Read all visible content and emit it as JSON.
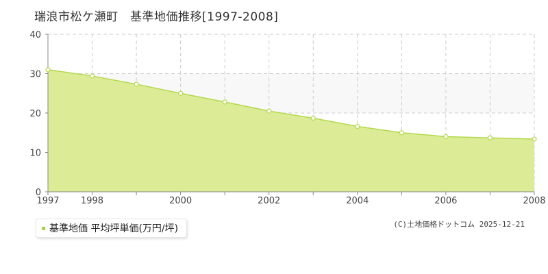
{
  "page": {
    "title": "瑞浪市松ケ瀬町　基準地価推移[1997-2008]",
    "legend_label": "基準地価 平均坪単価(万円/坪)",
    "credit": "(C)土地価格ドットコム 2025-12-21"
  },
  "colors": {
    "area_fill": "#dcec96",
    "line": "#b2d94a",
    "marker_stroke": "#b2d94a",
    "grid": "#cccccc",
    "band": "#f8f8f8"
  },
  "chart_data": {
    "type": "area",
    "title": "瑞浪市松ケ瀬町　基準地価推移[1997-2008]",
    "xlabel": "",
    "ylabel": "",
    "xlim": [
      1997,
      2008
    ],
    "ylim": [
      0,
      40
    ],
    "y_ticks": [
      0,
      10,
      20,
      30,
      40
    ],
    "x_tick_labels": [
      "1997",
      "1998",
      "2000",
      "2002",
      "2004",
      "2006",
      "2008"
    ],
    "grid": true,
    "legend_position": "bottom-left",
    "series": [
      {
        "name": "基準地価 平均坪単価(万円/坪)",
        "x": [
          1997,
          1998,
          1999,
          2000,
          2001,
          2002,
          2003,
          2004,
          2005,
          2006,
          2007,
          2008
        ],
        "values": [
          31.0,
          29.4,
          27.3,
          25.0,
          22.8,
          20.5,
          18.7,
          16.6,
          15.0,
          14.0,
          13.7,
          13.4
        ]
      }
    ]
  }
}
